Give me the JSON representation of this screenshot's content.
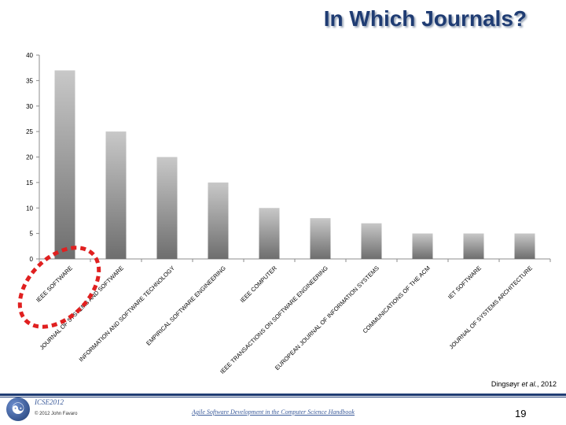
{
  "slide": {
    "title": "In Which Journals?",
    "citation_author": "Dingsøyr",
    "citation_etal": "et al.",
    "citation_year": ", 2012",
    "conference": "ICSE2012",
    "copyright": "© 2012 John Favaro",
    "book": "Agile Software Development in the Computer Science Handbook",
    "page_number": "19"
  },
  "chart_data": {
    "type": "bar",
    "categories": [
      "IEEE SOFTWARE",
      "JOURNAL OF SYSTEMS AND SOFTWARE",
      "INFORMATION AND SOFTWARE TECHNOLOGY",
      "EMPIRICAL SOFTWARE ENGINEERING",
      "IEEE COMPUTER",
      "IEEE TRANSACTIONS ON SOFTWARE ENGINEERING",
      "EUROPEAN JOURNAL OF INFORMATION SYSTEMS",
      "COMMUNICATIONS OF THE ACM",
      "IET SOFTWARE",
      "JOURNAL OF SYSTEMS ARCHITECTURE"
    ],
    "values": [
      37,
      25,
      20,
      15,
      10,
      8,
      7,
      5,
      5,
      5
    ],
    "yticks": [
      0,
      5,
      10,
      15,
      20,
      25,
      30,
      35,
      40
    ],
    "ylim": [
      0,
      40
    ],
    "grid": false,
    "bar_color_top": "#c8c8c8",
    "bar_color_bottom": "#6e6e6e",
    "highlight": {
      "category": "IEEE SOFTWARE",
      "style": "dashed-ellipse",
      "color": "#e02020"
    }
  }
}
